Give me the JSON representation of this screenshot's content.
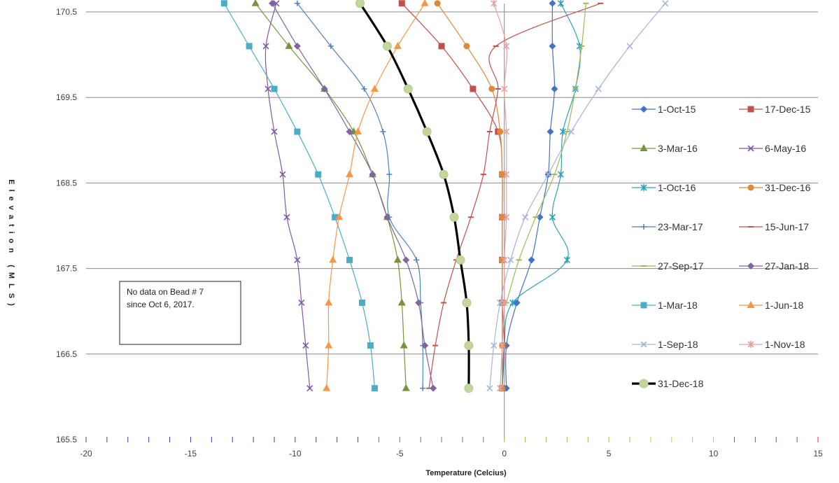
{
  "chart_data": {
    "type": "line",
    "xlabel": "Temperature (Celcius)",
    "ylabel": "Elevation (MLS)",
    "xlim": [
      -20,
      15
    ],
    "ylim": [
      165.5,
      170.5
    ],
    "x_ticks": [
      -20,
      -15,
      -10,
      -5,
      0,
      5,
      10,
      15
    ],
    "y_ticks": [
      165.5,
      166.5,
      167.5,
      168.5,
      169.5,
      170.5
    ],
    "grid": "horizontal",
    "legend_position": "right",
    "note": [
      "No data on Bead # 7",
      "since  Oct 6, 2017."
    ],
    "series": [
      {
        "name": "1-Oct-15",
        "color": "#4472c4",
        "marker": "diamond",
        "width": 1.2,
        "x": [
          2.3,
          2.3,
          2.4,
          2.2,
          2.1,
          1.7,
          1.3,
          0.6,
          0.1,
          0.1
        ],
        "y": [
          170.6,
          170.1,
          169.6,
          169.1,
          168.6,
          168.1,
          167.6,
          167.1,
          166.6,
          166.1
        ]
      },
      {
        "name": "17-Dec-15",
        "color": "#c0504d",
        "marker": "square",
        "width": 1.2,
        "x": [
          -4.9,
          -3.0,
          -1.5,
          -0.3,
          -0.1,
          -0.1,
          -0.1,
          -0.1,
          0.0,
          -0.1
        ],
        "y": [
          170.6,
          170.1,
          169.6,
          169.1,
          168.6,
          168.1,
          167.6,
          167.1,
          166.6,
          166.1
        ]
      },
      {
        "name": "3-Mar-16",
        "color": "#77933c",
        "marker": "triangle",
        "width": 1.2,
        "x": [
          -11.9,
          -10.3,
          -8.6,
          -7.2,
          -6.3,
          -5.6,
          -5.1,
          -4.9,
          -4.8,
          -4.7
        ],
        "y": [
          170.6,
          170.1,
          169.6,
          169.1,
          168.6,
          168.1,
          167.6,
          167.1,
          166.6,
          166.1
        ]
      },
      {
        "name": "6-May-16",
        "color": "#7f5aa3",
        "marker": "x",
        "width": 1.2,
        "x": [
          -10.9,
          -11.4,
          -11.3,
          -11.0,
          -10.6,
          -10.4,
          -9.9,
          -9.7,
          -9.5,
          -9.3
        ],
        "y": [
          170.6,
          170.1,
          169.6,
          169.1,
          168.6,
          168.1,
          167.6,
          167.1,
          166.6,
          166.1
        ]
      },
      {
        "name": "1-Oct-16",
        "color": "#2ea1b5",
        "marker": "star",
        "width": 1.2,
        "x": [
          2.7,
          3.6,
          3.4,
          2.8,
          2.7,
          2.3,
          3.0,
          0.4,
          0.0,
          -0.1
        ],
        "y": [
          170.6,
          170.1,
          169.6,
          169.1,
          168.6,
          168.1,
          167.6,
          167.1,
          166.6,
          166.1
        ]
      },
      {
        "name": "31-Dec-16",
        "color": "#e0883a",
        "marker": "circle",
        "width": 1.2,
        "x": [
          -3.2,
          -1.8,
          -0.6,
          -0.2,
          -0.1,
          -0.1,
          -0.1,
          -0.1,
          -0.1,
          -0.1
        ],
        "y": [
          170.6,
          170.1,
          169.6,
          169.1,
          168.6,
          168.1,
          167.6,
          167.1,
          166.6,
          166.1
        ]
      },
      {
        "name": "23-Mar-17",
        "color": "#4f81bd",
        "marker": "plus",
        "width": 1.2,
        "x": [
          -9.9,
          -8.3,
          -6.7,
          -5.8,
          -5.5,
          -5.5,
          -4.2,
          -4.0,
          -3.9,
          -3.9
        ],
        "y": [
          170.6,
          170.1,
          169.6,
          169.1,
          168.6,
          168.1,
          167.6,
          167.1,
          166.6,
          166.1
        ]
      },
      {
        "name": "15-Jun-17",
        "color": "#c0504d",
        "marker": "dash",
        "width": 1.2,
        "x": [
          4.6,
          -0.4,
          -0.3,
          -0.7,
          -1.0,
          -1.6,
          -2.3,
          -2.9,
          -3.3,
          -3.6
        ],
        "y": [
          170.6,
          170.1,
          169.6,
          169.1,
          168.6,
          168.1,
          167.6,
          167.1,
          166.6,
          166.1
        ]
      },
      {
        "name": "27-Sep-17",
        "color": "#9bbb59",
        "marker": "dash",
        "width": 1.2,
        "x": [
          3.9,
          3.7,
          3.4,
          3.0,
          2.4,
          1.5,
          0.7,
          0.1,
          null,
          null
        ],
        "y": [
          170.6,
          170.1,
          169.6,
          169.1,
          168.6,
          168.1,
          167.6,
          167.1,
          166.6,
          166.1
        ]
      },
      {
        "name": "27-Jan-18",
        "color": "#8064a2",
        "marker": "diamond",
        "width": 1.2,
        "x": [
          -11.1,
          -9.9,
          -8.6,
          -7.4,
          -6.3,
          -5.6,
          -4.7,
          -4.1,
          -3.8,
          -3.4
        ],
        "y": [
          170.6,
          170.1,
          169.6,
          169.1,
          168.6,
          168.1,
          167.6,
          167.1,
          166.6,
          166.1
        ]
      },
      {
        "name": "1-Mar-18",
        "color": "#4bacc6",
        "marker": "square",
        "width": 1.2,
        "x": [
          -13.4,
          -12.2,
          -11.0,
          -9.9,
          -8.9,
          -8.1,
          -7.4,
          -6.8,
          -6.4,
          -6.2
        ],
        "y": [
          170.6,
          170.1,
          169.6,
          169.1,
          168.6,
          168.1,
          167.6,
          167.1,
          166.6,
          166.1
        ]
      },
      {
        "name": "1-Jun-18",
        "color": "#f79646",
        "marker": "triangle",
        "width": 1.2,
        "x": [
          -3.8,
          -5.1,
          -6.2,
          -7.0,
          -7.4,
          -7.9,
          -8.2,
          -8.4,
          -8.4,
          -8.5
        ],
        "y": [
          170.6,
          170.1,
          169.6,
          169.1,
          168.6,
          168.1,
          167.6,
          167.1,
          166.6,
          166.1
        ]
      },
      {
        "name": "1-Sep-18",
        "color": "#a5b4d8",
        "marker": "x",
        "width": 1.2,
        "x": [
          7.7,
          6.0,
          4.5,
          3.2,
          2.1,
          1.0,
          0.3,
          -0.2,
          -0.5,
          -0.7
        ],
        "y": [
          170.6,
          170.1,
          169.6,
          169.1,
          168.6,
          168.1,
          167.6,
          167.1,
          166.6,
          166.1
        ]
      },
      {
        "name": "1-Nov-18",
        "color": "#e6a0a0",
        "marker": "star",
        "width": 1.2,
        "x": [
          -0.5,
          0.1,
          0.0,
          0.1,
          0.1,
          0.1,
          0.0,
          0.0,
          -0.1,
          -0.2
        ],
        "y": [
          170.6,
          170.1,
          169.6,
          169.1,
          168.6,
          168.1,
          167.6,
          167.1,
          166.6,
          166.1
        ]
      },
      {
        "name": "31-Dec-18",
        "color": "#000000",
        "marker": "bigcircle",
        "width": 3.2,
        "x": [
          -6.9,
          -5.6,
          -4.6,
          -3.7,
          -2.9,
          -2.4,
          -2.1,
          -1.8,
          -1.7,
          -1.7
        ],
        "y": [
          170.6,
          170.1,
          169.6,
          169.1,
          168.6,
          168.1,
          167.6,
          167.1,
          166.6,
          166.1
        ]
      }
    ]
  }
}
